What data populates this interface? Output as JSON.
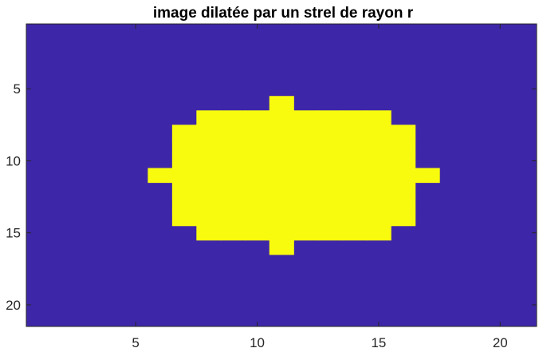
{
  "chart_data": {
    "type": "heatmap",
    "title": "image dilatée par un strel de rayon r",
    "xlabel": "",
    "ylabel": "",
    "xlim": [
      0.5,
      21.5
    ],
    "ylim": [
      0.5,
      21.5
    ],
    "y_reversed": true,
    "xticks": [
      5,
      10,
      15,
      20
    ],
    "yticks": [
      5,
      10,
      15,
      20
    ],
    "grid": false,
    "colors": {
      "background": "#3e26a8",
      "foreground": "#f9fb0e",
      "axis": "#262626"
    },
    "rows": 21,
    "cols": 21,
    "value_encoding": "binary mask: 1 = foreground (yellow), 0 = background (blue)",
    "mask": [
      "000000000000000000000",
      "000000000000000000000",
      "000000000000000000000",
      "000000000000000000000",
      "000000000000000000000",
      "000000000010000000000",
      "000000011111111000000",
      "000000111111111100000",
      "000000111111111100000",
      "000000111111111100000",
      "000001111111111110000",
      "000000111111111100000",
      "000000111111111100000",
      "000000111111111100000",
      "000000011111111000000",
      "000000000010000000000",
      "000000000000000000000",
      "000000000000000000000",
      "000000000000000000000",
      "000000000000000000000",
      "000000000000000000000"
    ]
  }
}
